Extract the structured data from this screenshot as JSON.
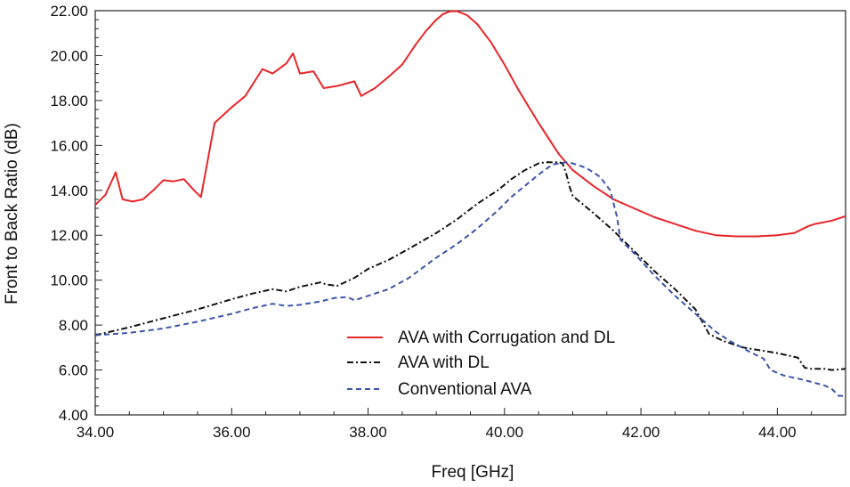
{
  "chart_data": {
    "type": "line",
    "title": "",
    "xlabel": "Freq [GHz]",
    "ylabel": "Front to Back Ratio (dB)",
    "xlim": [
      34,
      45
    ],
    "ylim": [
      4,
      22
    ],
    "xticks": [
      34,
      36,
      38,
      40,
      42,
      44
    ],
    "xtick_labels": [
      "34.00",
      "36.00",
      "38.00",
      "40.00",
      "42.00",
      "44.00"
    ],
    "yticks": [
      4,
      6,
      8,
      10,
      12,
      14,
      16,
      18,
      20,
      22
    ],
    "ytick_labels": [
      "4.00",
      "6.00",
      "8.00",
      "10.00",
      "12.00",
      "14.00",
      "16.00",
      "18.00",
      "20.00",
      "22.00"
    ],
    "grid": false,
    "legend_position": "bottom-center",
    "series": [
      {
        "name": "AVA with Corrugation and DL",
        "color": "#e8262a",
        "style": "solid",
        "x": [
          34.0,
          34.15,
          34.3,
          34.4,
          34.55,
          34.7,
          34.85,
          35.0,
          35.15,
          35.3,
          35.45,
          35.55,
          35.75,
          36.0,
          36.2,
          36.45,
          36.6,
          36.8,
          36.9,
          37.0,
          37.2,
          37.35,
          37.55,
          37.8,
          37.9,
          38.1,
          38.3,
          38.5,
          38.7,
          38.85,
          39.0,
          39.1,
          39.2,
          39.3,
          39.45,
          39.6,
          39.8,
          40.0,
          40.2,
          40.5,
          40.8,
          41.0,
          41.3,
          41.6,
          41.9,
          42.2,
          42.35,
          42.5,
          42.8,
          43.1,
          43.4,
          43.7,
          44.0,
          44.25,
          44.45,
          44.55,
          44.8,
          45.0
        ],
        "values": [
          13.35,
          13.8,
          14.8,
          13.6,
          13.5,
          13.6,
          14.0,
          14.45,
          14.4,
          14.5,
          14.0,
          13.7,
          17.0,
          17.7,
          18.2,
          19.4,
          19.2,
          19.65,
          20.1,
          19.2,
          19.3,
          18.55,
          18.65,
          18.85,
          18.2,
          18.55,
          19.05,
          19.6,
          20.5,
          21.1,
          21.6,
          21.85,
          21.97,
          21.98,
          21.8,
          21.4,
          20.6,
          19.6,
          18.5,
          17.0,
          15.6,
          14.9,
          14.2,
          13.6,
          13.2,
          12.8,
          12.65,
          12.5,
          12.2,
          12.0,
          11.95,
          11.95,
          12.0,
          12.1,
          12.4,
          12.5,
          12.65,
          12.85
        ]
      },
      {
        "name": "AVA with DL",
        "color": "#111111",
        "style": "dash-dot",
        "x": [
          34.0,
          34.5,
          35.0,
          35.5,
          36.0,
          36.3,
          36.6,
          36.7,
          36.8,
          37.0,
          37.3,
          37.4,
          37.55,
          37.8,
          38.0,
          38.3,
          38.6,
          39.0,
          39.3,
          39.6,
          39.9,
          40.1,
          40.3,
          40.5,
          40.6,
          40.8,
          40.85,
          40.9,
          40.95,
          41.0,
          41.3,
          41.6,
          41.9,
          42.2,
          42.5,
          42.8,
          43.0,
          43.2,
          43.5,
          43.8,
          44.0,
          44.3,
          44.4,
          44.5,
          44.7,
          44.8,
          45.0
        ],
        "values": [
          7.55,
          7.9,
          8.3,
          8.7,
          9.15,
          9.4,
          9.6,
          9.55,
          9.5,
          9.7,
          9.9,
          9.8,
          9.75,
          10.1,
          10.5,
          10.9,
          11.4,
          12.1,
          12.7,
          13.4,
          14.0,
          14.5,
          14.9,
          15.2,
          15.25,
          15.25,
          15.2,
          14.8,
          14.2,
          13.75,
          13.0,
          12.2,
          11.3,
          10.4,
          9.6,
          8.7,
          7.6,
          7.3,
          7.0,
          6.85,
          6.75,
          6.55,
          6.1,
          6.05,
          6.05,
          6.0,
          6.05
        ]
      },
      {
        "name": "Conventional AVA",
        "color": "#3b55a8",
        "style": "dashed",
        "x": [
          34.0,
          34.5,
          35.0,
          35.5,
          36.0,
          36.3,
          36.6,
          36.7,
          36.8,
          37.0,
          37.3,
          37.5,
          37.7,
          37.8,
          38.0,
          38.3,
          38.6,
          39.0,
          39.3,
          39.6,
          39.9,
          40.1,
          40.3,
          40.5,
          40.7,
          40.9,
          41.0,
          41.2,
          41.4,
          41.55,
          41.65,
          41.7,
          41.9,
          42.2,
          42.5,
          42.8,
          43.1,
          43.3,
          43.6,
          43.8,
          43.9,
          44.1,
          44.4,
          44.7,
          44.8,
          44.9,
          45.0
        ],
        "values": [
          7.55,
          7.65,
          7.85,
          8.15,
          8.5,
          8.75,
          8.95,
          8.9,
          8.85,
          8.9,
          9.05,
          9.2,
          9.25,
          9.1,
          9.3,
          9.6,
          10.1,
          11.0,
          11.6,
          12.3,
          13.1,
          13.7,
          14.2,
          14.7,
          15.15,
          15.25,
          15.2,
          15.0,
          14.6,
          14.0,
          12.8,
          11.8,
          11.2,
          10.2,
          9.3,
          8.5,
          7.7,
          7.3,
          6.8,
          6.5,
          6.0,
          5.75,
          5.55,
          5.3,
          5.15,
          4.85,
          4.85
        ]
      }
    ]
  }
}
